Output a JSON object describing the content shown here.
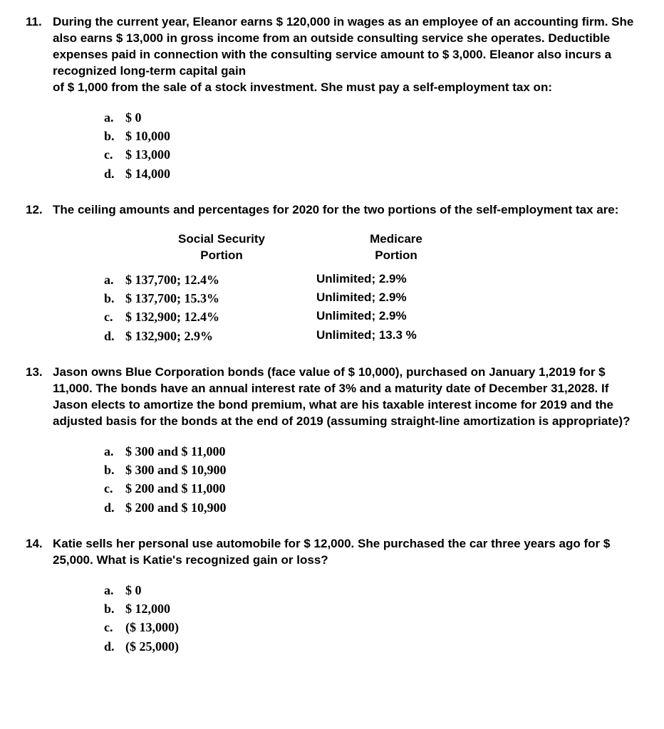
{
  "questions": [
    {
      "number": "11.",
      "text": "During the current year, Eleanor earns $ 120,000 in wages as an employee of an accounting firm. She also earns $ 13,000 in gross income from an outside consulting service she operates. Deductible expenses paid in connection with the consulting service amount to $ 3,000. Eleanor also incurs a recognized long-term capital gain\nof $ 1,000 from the sale of a stock investment. She must pay a self-employment tax on:",
      "options": [
        {
          "letter": "a.",
          "text": "$ 0"
        },
        {
          "letter": "b.",
          "text": "$ 10,000"
        },
        {
          "letter": "c.",
          "text": "$ 13,000"
        },
        {
          "letter": "d.",
          "text": "$ 14,000"
        }
      ]
    },
    {
      "number": "12.",
      "text": "The ceiling amounts and percentages for 2020 for the two portions of the self-employment tax are:",
      "table_headers": {
        "social": "Social Security\nPortion",
        "medicare": "Medicare\nPortion"
      },
      "table_options": [
        {
          "letter": "a.",
          "social": "$ 137,700; 12.4%",
          "medicare": "Unlimited; 2.9%"
        },
        {
          "letter": "b.",
          "social": "$ 137,700; 15.3%",
          "medicare": "Unlimited; 2.9%"
        },
        {
          "letter": "c.",
          "social": "$ 132,900; 12.4%",
          "medicare": "Unlimited; 2.9%"
        },
        {
          "letter": "d.",
          "social": "$ 132,900; 2.9%",
          "medicare": "Unlimited; 13.3 %"
        }
      ]
    },
    {
      "number": "13.",
      "text": "Jason owns Blue Corporation bonds (face value of $ 10,000), purchased on January 1,2019 for $ 11,000. The bonds have an annual interest rate of 3% and a maturity date of December 31,2028. If Jason elects to amortize the bond premium, what are his taxable interest income for 2019 and the adjusted basis for the bonds at the end of 2019 (assuming straight-line amortization is appropriate)?",
      "options": [
        {
          "letter": "a.",
          "text": "$ 300 and $ 11,000"
        },
        {
          "letter": "b.",
          "text": "$ 300 and $ 10,900"
        },
        {
          "letter": "c.",
          "text": "$ 200 and $ 11,000"
        },
        {
          "letter": "d.",
          "text": "$ 200 and $ 10,900"
        }
      ]
    },
    {
      "number": "14.",
      "text": "Katie sells her personal use automobile for $ 12,000. She purchased the car three years ago for $ 25,000. What is Katie's recognized gain or loss?",
      "options": [
        {
          "letter": "a.",
          "text": "$ 0"
        },
        {
          "letter": "b.",
          "text": "$ 12,000"
        },
        {
          "letter": "c.",
          "text": "($ 13,000)"
        },
        {
          "letter": "d.",
          "text": "($ 25,000)"
        }
      ]
    }
  ]
}
